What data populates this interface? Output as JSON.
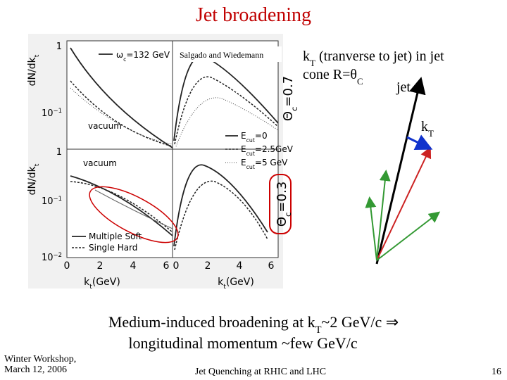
{
  "title": "Jet broadening",
  "figure": {
    "credit": "Salgado and Wiedemann",
    "omega": [
      {
        "text": "ω"
      },
      {
        "text": "c",
        "sub": true
      },
      {
        "text": "=132 GeV"
      }
    ],
    "top_vacuum": "vacuum",
    "bottom_vacuum": "vacuum",
    "legend_top": [
      [
        {
          "text": "E"
        },
        {
          "text": "cut",
          "sub": true
        },
        {
          "text": "=0"
        }
      ],
      [
        {
          "text": "E"
        },
        {
          "text": "cut",
          "sub": true
        },
        {
          "text": "=2.5GeV"
        }
      ],
      [
        {
          "text": "E"
        },
        {
          "text": "cut",
          "sub": true
        },
        {
          "text": "=5 GeV"
        }
      ]
    ],
    "legend_bottom": [
      "Multiple Soft",
      "Single Hard"
    ],
    "theta_top": [
      {
        "text": "Θ"
      },
      {
        "text": "c",
        "sub": true
      },
      {
        "text": "=0.7"
      }
    ],
    "theta_bottom": [
      {
        "text": "Θ"
      },
      {
        "text": "c",
        "sub": true
      },
      {
        "text": "=0.3"
      }
    ],
    "y_label": [
      {
        "text": "dN/dk"
      },
      {
        "text": "t",
        "sub": true
      }
    ],
    "x_label": [
      {
        "text": "k"
      },
      {
        "text": "t",
        "sub": true
      },
      {
        "text": "(GeV)"
      }
    ],
    "x_ticks_left": [
      "0",
      "2",
      "4",
      "6"
    ],
    "x_ticks_right": [
      "0",
      "2",
      "4",
      "6"
    ],
    "y_ticks_top": [
      [
        {
          "text": "1"
        }
      ],
      [
        {
          "text": "10"
        },
        {
          "text": "−1",
          "sup": true
        }
      ]
    ],
    "y_ticks_bottom": [
      [
        {
          "text": "1"
        }
      ],
      [
        {
          "text": "10"
        },
        {
          "text": "−1",
          "sup": true
        }
      ],
      [
        {
          "text": "10"
        },
        {
          "text": "−2",
          "sup": true
        }
      ]
    ]
  },
  "diagram": {
    "line1": [
      {
        "text": "k"
      },
      {
        "text": "T",
        "sub": true
      },
      {
        "text": " (tranverse to jet) in jet"
      }
    ],
    "line2": [
      {
        "text": "cone R=θ"
      },
      {
        "text": "C",
        "sub": true
      }
    ],
    "jet_label": "jet",
    "kt_label": [
      {
        "text": "k"
      },
      {
        "text": "T",
        "sub": true
      }
    ]
  },
  "caption": {
    "line1": [
      {
        "text": "Medium-induced broadening at k"
      },
      {
        "text": "T",
        "sub": true
      },
      {
        "text": "~2 GeV/c ⇒"
      }
    ],
    "line2": "longitudinal momentum  ~few GeV/c"
  },
  "footer": {
    "left": [
      "Winter Workshop,",
      "March 12, 2006"
    ],
    "center": "Jet Quenching at RHIC and LHC",
    "page": "16"
  }
}
